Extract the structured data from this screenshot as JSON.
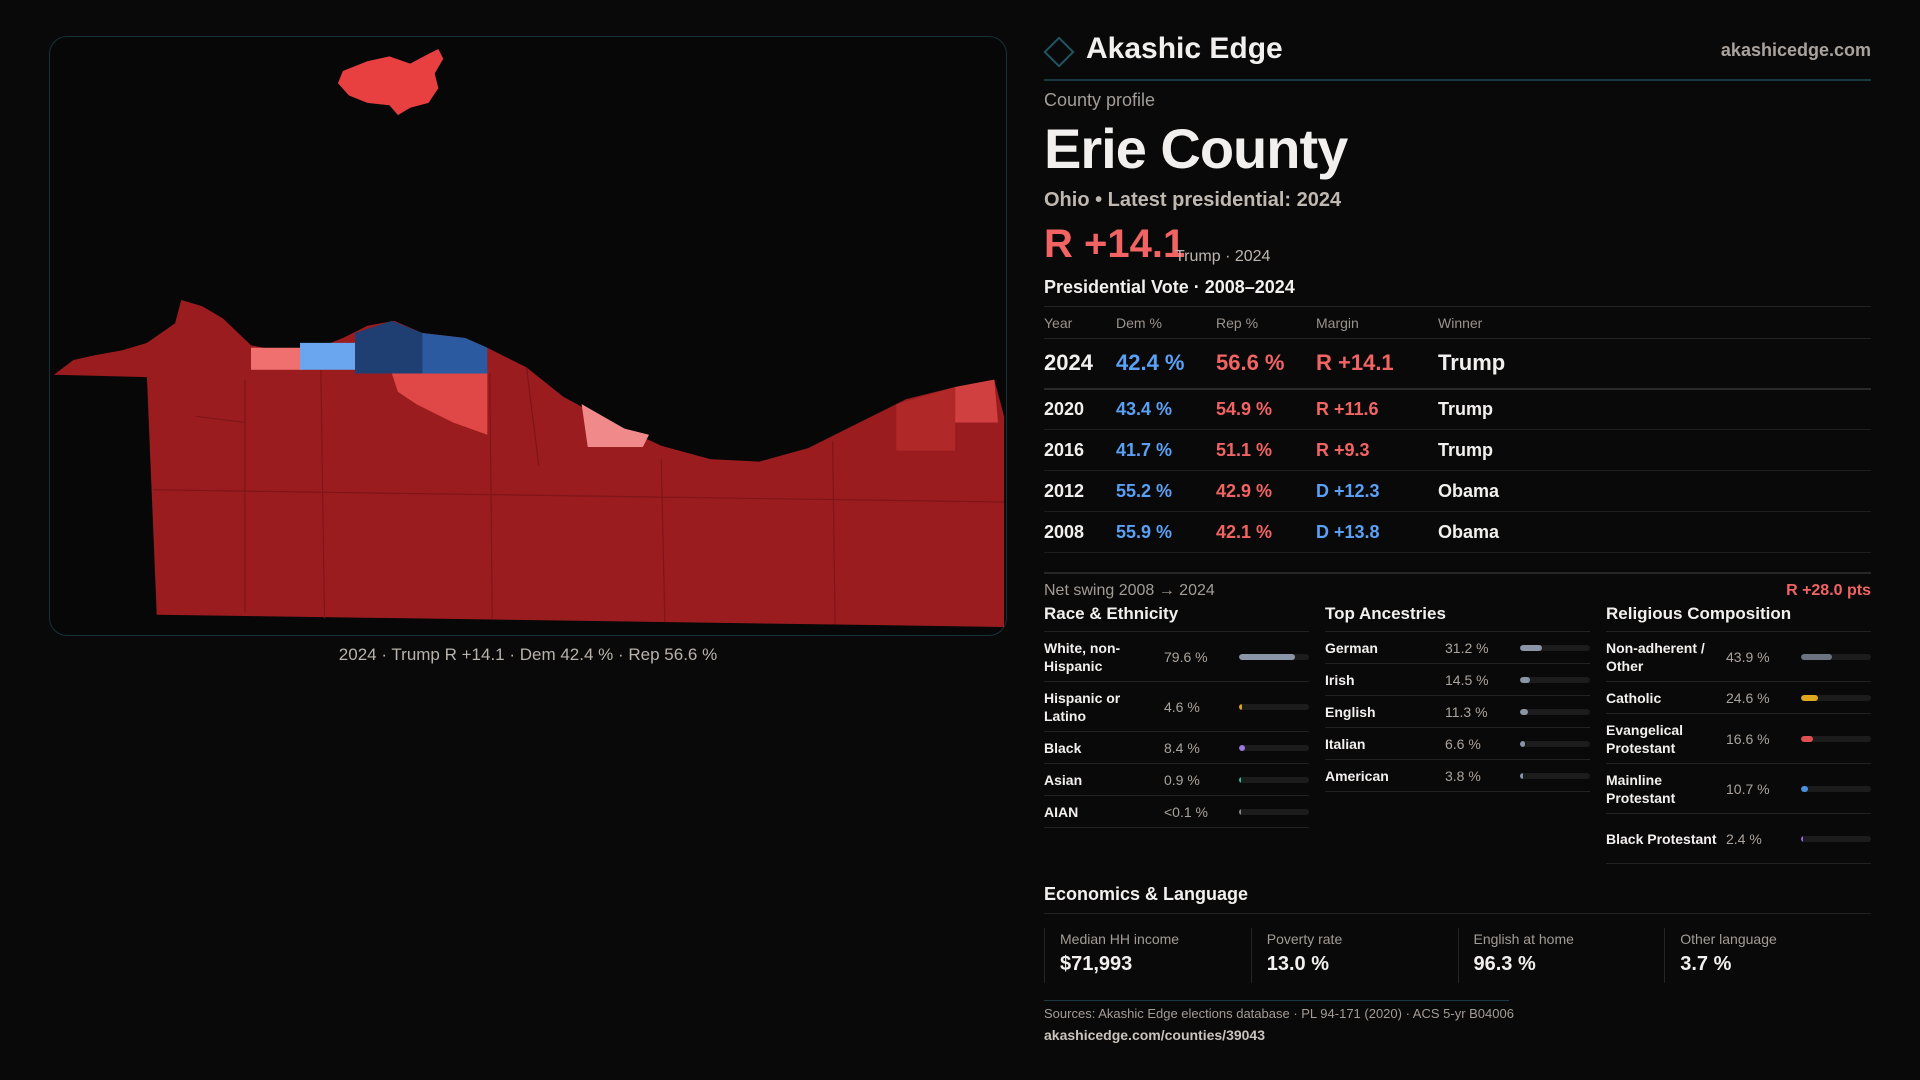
{
  "map": {
    "caption": "2024 · Trump R +14.1 · Dem 42.4 % · Rep 56.6 %",
    "colors": {
      "safe_r": "#9b1c1f",
      "lean_r": "#e04848",
      "light_r": "#f08a8a",
      "light_d": "#6aa6f0",
      "mid_d": "#2b5aa0",
      "dark_d": "#1f3f73"
    }
  },
  "header": {
    "brand": "Akashic Edge",
    "site": "akashicedge.com",
    "logo_icon": "diamond-icon"
  },
  "profile": {
    "kicker": "County profile",
    "title": "Erie County",
    "subtitle": "Ohio • Latest presidential: 2024",
    "margin": "R +14.1",
    "margin_note": "Trump · 2024"
  },
  "vote": {
    "title": "Presidential Vote · 2008–2024",
    "headers": [
      "Year",
      "Dem %",
      "Rep %",
      "Margin",
      "Winner"
    ],
    "rows": [
      {
        "year": "2024",
        "dem": "42.4 %",
        "rep": "56.6 %",
        "margin": "R +14.1",
        "party": "R",
        "winner": "Trump"
      },
      {
        "year": "2020",
        "dem": "43.4 %",
        "rep": "54.9 %",
        "margin": "R +11.6",
        "party": "R",
        "winner": "Trump"
      },
      {
        "year": "2016",
        "dem": "41.7 %",
        "rep": "51.1 %",
        "margin": "R +9.3",
        "party": "R",
        "winner": "Trump"
      },
      {
        "year": "2012",
        "dem": "55.2 %",
        "rep": "42.9 %",
        "margin": "D +12.3",
        "party": "D",
        "winner": "Obama"
      },
      {
        "year": "2008",
        "dem": "55.9 %",
        "rep": "42.1 %",
        "margin": "D +13.8",
        "party": "D",
        "winner": "Obama"
      }
    ],
    "swing_label": "Net swing 2008 → 2024",
    "swing_value": "R +28.0 pts"
  },
  "sections": [
    {
      "title": "Race & Ethnicity",
      "rows": [
        {
          "label": "White, non-Hispanic",
          "value": "79.6 %",
          "fill": 0.796,
          "color": "#8b95a8"
        },
        {
          "label": "Hispanic or Latino",
          "value": "4.6 %",
          "fill": 0.046,
          "color": "#e0a020"
        },
        {
          "label": "Black",
          "value": "8.4 %",
          "fill": 0.084,
          "color": "#9a7ae0"
        },
        {
          "label": "Asian",
          "value": "0.9 %",
          "fill": 0.009,
          "color": "#30c0a0"
        },
        {
          "label": "AIAN",
          "value": "<0.1 %",
          "fill": 0.001,
          "color": "#888"
        }
      ]
    },
    {
      "title": "Top Ancestries",
      "rows": [
        {
          "label": "German",
          "value": "31.2 %",
          "fill": 0.312,
          "color": "#8b95a8"
        },
        {
          "label": "Irish",
          "value": "14.5 %",
          "fill": 0.145,
          "color": "#8b95a8"
        },
        {
          "label": "English",
          "value": "11.3 %",
          "fill": 0.113,
          "color": "#8b95a8"
        },
        {
          "label": "Italian",
          "value": "6.6 %",
          "fill": 0.066,
          "color": "#8b95a8"
        },
        {
          "label": "American",
          "value": "3.8 %",
          "fill": 0.038,
          "color": "#8b95a8"
        }
      ]
    },
    {
      "title": "Religious Composition",
      "rows": [
        {
          "label": "Non-adherent / Other",
          "value": "43.9 %",
          "fill": 0.439,
          "color": "#6b7280"
        },
        {
          "label": "Catholic",
          "value": "24.6 %",
          "fill": 0.246,
          "color": "#e0a820"
        },
        {
          "label": "Evangelical Protestant",
          "value": "16.6 %",
          "fill": 0.166,
          "color": "#e05050"
        },
        {
          "label": "Mainline Protestant",
          "value": "10.7 %",
          "fill": 0.107,
          "color": "#4a90e0"
        },
        {
          "label": "Black Protestant",
          "value": "2.4 %",
          "fill": 0.024,
          "color": "#9a6ae0"
        }
      ]
    }
  ],
  "economics": {
    "title": "Economics & Language",
    "stats": [
      {
        "label": "Median HH income",
        "value": "$71,993"
      },
      {
        "label": "Poverty rate",
        "value": "13.0 %"
      },
      {
        "label": "English at home",
        "value": "96.3 %"
      },
      {
        "label": "Other language",
        "value": "3.7 %"
      }
    ]
  },
  "footer": {
    "sources": "Sources: Akashic Edge elections database · PL 94-171 (2020) · ACS 5-yr B04006",
    "url": "akashicedge.com/counties/39043"
  }
}
